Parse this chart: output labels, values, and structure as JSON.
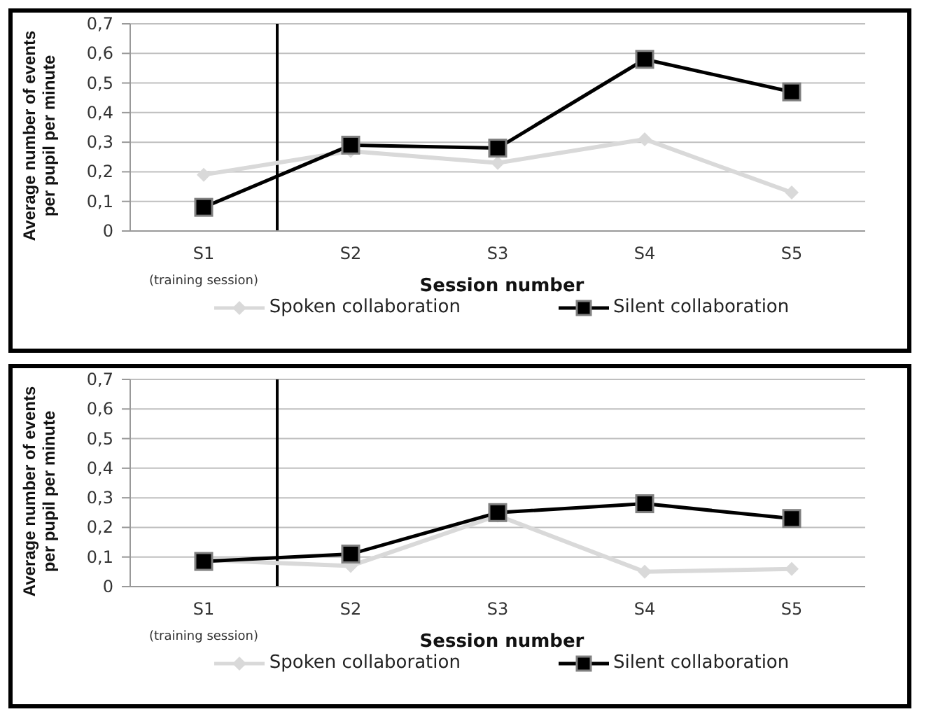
{
  "chart_data": [
    {
      "type": "line",
      "xlabel": "Session number",
      "ylabel": "Average number of events per pupil per minute",
      "categories": [
        "S1",
        "S2",
        "S3",
        "S4",
        "S5"
      ],
      "ylim": [
        0,
        0.7
      ],
      "yticks": [
        0,
        {
          "value": 0.1,
          "label": "0,1"
        },
        {
          "value": 0.2,
          "label": "0,2"
        },
        {
          "value": 0.3,
          "label": "0,3"
        },
        {
          "value": 0.4,
          "label": "0,4"
        },
        {
          "value": 0.5,
          "label": "0,5"
        },
        {
          "value": 0.6,
          "label": "0,6"
        },
        {
          "value": 0.7,
          "label": "0,7"
        }
      ],
      "grid": "y",
      "legend": "bottom",
      "annotations": [
        "(training session)"
      ],
      "ref_lines": [
        {
          "axis": "x",
          "value": "S1",
          "color": "#000000"
        }
      ],
      "series": [
        {
          "name": "Spoken collaboration",
          "color": "#d9d9d9",
          "marker": "diamond",
          "values": [
            0.19,
            0.27,
            0.23,
            0.31,
            0.13
          ]
        },
        {
          "name": "Silent collaboration",
          "color": "#000000",
          "marker": "square",
          "values": [
            0.08,
            0.29,
            0.28,
            0.58,
            0.47
          ]
        }
      ]
    },
    {
      "type": "line",
      "xlabel": "Session number",
      "ylabel": "Average number of events per pupil per minute",
      "categories": [
        "S1",
        "S2",
        "S3",
        "S4",
        "S5"
      ],
      "ylim": [
        0,
        0.7
      ],
      "yticks": [
        0,
        {
          "value": 0.1,
          "label": "0,1"
        },
        {
          "value": 0.2,
          "label": "0,2"
        },
        {
          "value": 0.3,
          "label": "0,3"
        },
        {
          "value": 0.4,
          "label": "0,4"
        },
        {
          "value": 0.5,
          "label": "0,5"
        },
        {
          "value": 0.6,
          "label": "0,6"
        },
        {
          "value": 0.7,
          "label": "0,7"
        }
      ],
      "grid": "y",
      "legend": "bottom",
      "annotations": [
        "(training session)"
      ],
      "ref_lines": [
        {
          "axis": "x",
          "value": "S1",
          "color": "#000000"
        }
      ],
      "series": [
        {
          "name": "Spoken collaboration",
          "color": "#d9d9d9",
          "marker": "diamond",
          "values": [
            0.09,
            0.07,
            0.24,
            0.05,
            0.06
          ]
        },
        {
          "name": "Silent collaboration",
          "color": "#000000",
          "marker": "square",
          "values": [
            0.085,
            0.11,
            0.25,
            0.28,
            0.23
          ]
        }
      ]
    }
  ]
}
